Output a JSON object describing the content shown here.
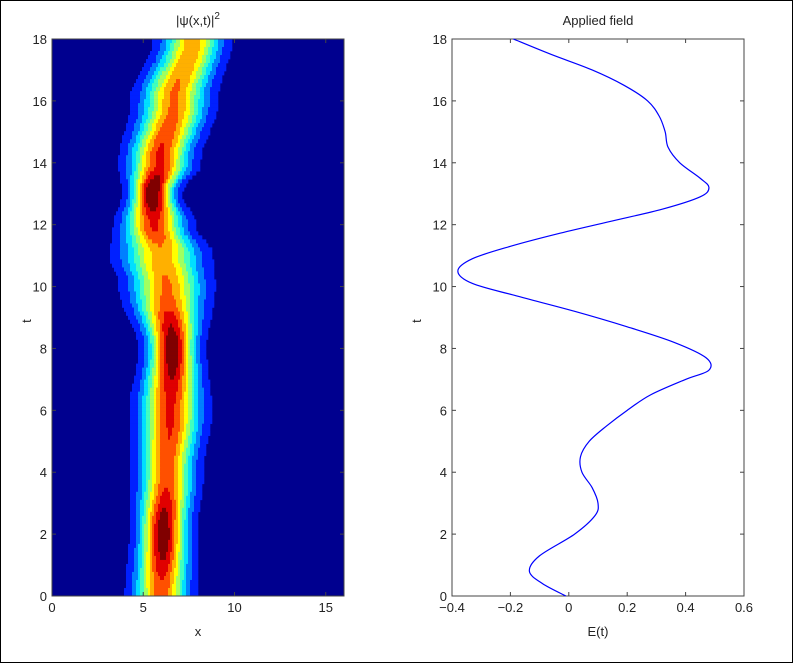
{
  "chart_data": [
    {
      "type": "heatmap",
      "title": "|ψ(x,t)|",
      "title_sup": "2",
      "xlabel": "x",
      "ylabel": "t",
      "xlim": [
        0,
        16
      ],
      "ylim": [
        0,
        18
      ],
      "xticks": [
        "0",
        "5",
        "10",
        "15"
      ],
      "yticks": [
        "0",
        "2",
        "4",
        "6",
        "8",
        "10",
        "12",
        "14",
        "16",
        "18"
      ],
      "colormap": "jet",
      "filled_contours": true,
      "packet": {
        "t": [
          0,
          2,
          4,
          6,
          8,
          10,
          11,
          12,
          13,
          14,
          16,
          18
        ],
        "center": [
          6.0,
          6.1,
          6.3,
          6.5,
          6.6,
          6.3,
          6.0,
          5.6,
          5.5,
          5.9,
          6.7,
          7.7
        ],
        "peak": [
          0.8,
          1.0,
          0.8,
          0.85,
          1.0,
          0.75,
          0.7,
          0.85,
          1.05,
          0.85,
          0.75,
          0.7
        ],
        "width": [
          0.9,
          0.8,
          0.9,
          1.0,
          0.8,
          1.2,
          1.3,
          1.0,
          0.7,
          1.0,
          1.1,
          1.0
        ]
      }
    },
    {
      "type": "line",
      "title": "Applied field",
      "xlabel": "E(t)",
      "ylabel": "t",
      "xlim": [
        -0.4,
        0.6
      ],
      "ylim": [
        0,
        18
      ],
      "xticks": [
        "−0.4",
        "−0.2",
        "0",
        "0.2",
        "0.4",
        "0.6"
      ],
      "yticks": [
        "0",
        "2",
        "4",
        "6",
        "8",
        "10",
        "12",
        "14",
        "16",
        "18"
      ],
      "line_color": "#0000ff",
      "series": [
        {
          "t": [
            0,
            0.4,
            0.8,
            1.3,
            2,
            2.6,
            3,
            3.5,
            4,
            4.5,
            5,
            5.5,
            6,
            6.5,
            7,
            7.3,
            7.7,
            8.2,
            8.7,
            9.2,
            9.7,
            10.1,
            10.5,
            10.9,
            11.3,
            11.7,
            12.1,
            12.5,
            12.9,
            13.2,
            13.5,
            14,
            14.5,
            15,
            15.5,
            16,
            16.5,
            17,
            17.5,
            18
          ],
          "E": [
            -0.01,
            -0.09,
            -0.135,
            -0.1,
            0.02,
            0.09,
            0.1,
            0.08,
            0.045,
            0.04,
            0.07,
            0.13,
            0.2,
            0.28,
            0.4,
            0.48,
            0.47,
            0.36,
            0.2,
            0.02,
            -0.18,
            -0.33,
            -0.38,
            -0.33,
            -0.2,
            -0.04,
            0.14,
            0.32,
            0.45,
            0.48,
            0.45,
            0.38,
            0.34,
            0.33,
            0.31,
            0.27,
            0.19,
            0.08,
            -0.06,
            -0.19
          ]
        }
      ]
    }
  ]
}
